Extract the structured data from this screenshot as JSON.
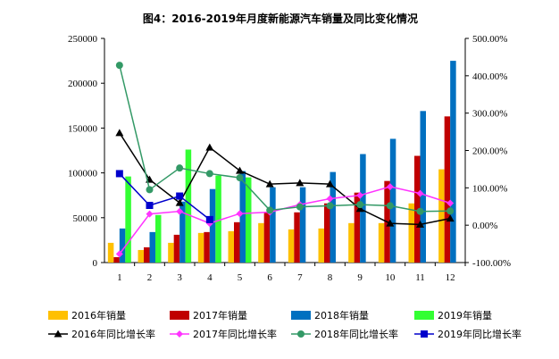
{
  "chart_data": {
    "type": "bar",
    "title": "图4：2016-2019年月度新能源汽车销量及同比变化情况",
    "categories": [
      "1",
      "2",
      "3",
      "4",
      "5",
      "6",
      "7",
      "8",
      "9",
      "10",
      "11",
      "12"
    ],
    "y_left": {
      "min": 0,
      "max": 250000,
      "ticks": [
        "0",
        "50000",
        "100000",
        "150000",
        "200000",
        "250000"
      ]
    },
    "y_right": {
      "min": -100,
      "max": 500,
      "ticks": [
        "-100.00%",
        "0.00%",
        "100.00%",
        "200.00%",
        "300.00%",
        "400.00%",
        "500.00%"
      ]
    },
    "grid": false,
    "legend_position": "bottom",
    "bar_series": [
      {
        "name": "2016年销量",
        "color": "#FFC000",
        "values": [
          22000,
          14000,
          22000,
          33000,
          35000,
          44000,
          37000,
          38000,
          44000,
          44000,
          66000,
          104000
        ]
      },
      {
        "name": "2017年销量",
        "color": "#C00000",
        "values": [
          6000,
          17000,
          31000,
          34000,
          45000,
          56000,
          56000,
          66000,
          78000,
          91000,
          119000,
          163000
        ]
      },
      {
        "name": "2018年销量",
        "color": "#0070C0",
        "values": [
          38000,
          34000,
          68000,
          82000,
          102000,
          84000,
          84000,
          101000,
          121000,
          138000,
          169000,
          225000
        ]
      },
      {
        "name": "2019年销量",
        "color": "#33FF33",
        "values": [
          96000,
          53000,
          126000,
          97000,
          95000,
          null,
          null,
          null,
          null,
          null,
          null,
          null
        ]
      }
    ],
    "line_series": [
      {
        "name": "2016年同比增长率",
        "color": "#000000",
        "marker": "triangle",
        "values": [
          247,
          122,
          60,
          208,
          146,
          110,
          113,
          110,
          44,
          5,
          2,
          18
        ]
      },
      {
        "name": "2017年同比增长率",
        "color": "#FF33FF",
        "marker": "diamond",
        "values": [
          -77,
          30,
          37,
          5,
          31,
          35,
          55,
          71,
          80,
          103,
          85,
          59
        ]
      },
      {
        "name": "2018年同比增长率",
        "color": "#339966",
        "marker": "circle",
        "values": [
          428,
          95,
          153,
          138,
          127,
          40,
          49,
          52,
          55,
          52,
          37,
          38
        ]
      },
      {
        "name": "2019年同比增长率",
        "color": "#0000CC",
        "marker": "square",
        "values": [
          138,
          53,
          78,
          15,
          null,
          null,
          null,
          null,
          null,
          null,
          null,
          null
        ]
      }
    ]
  }
}
